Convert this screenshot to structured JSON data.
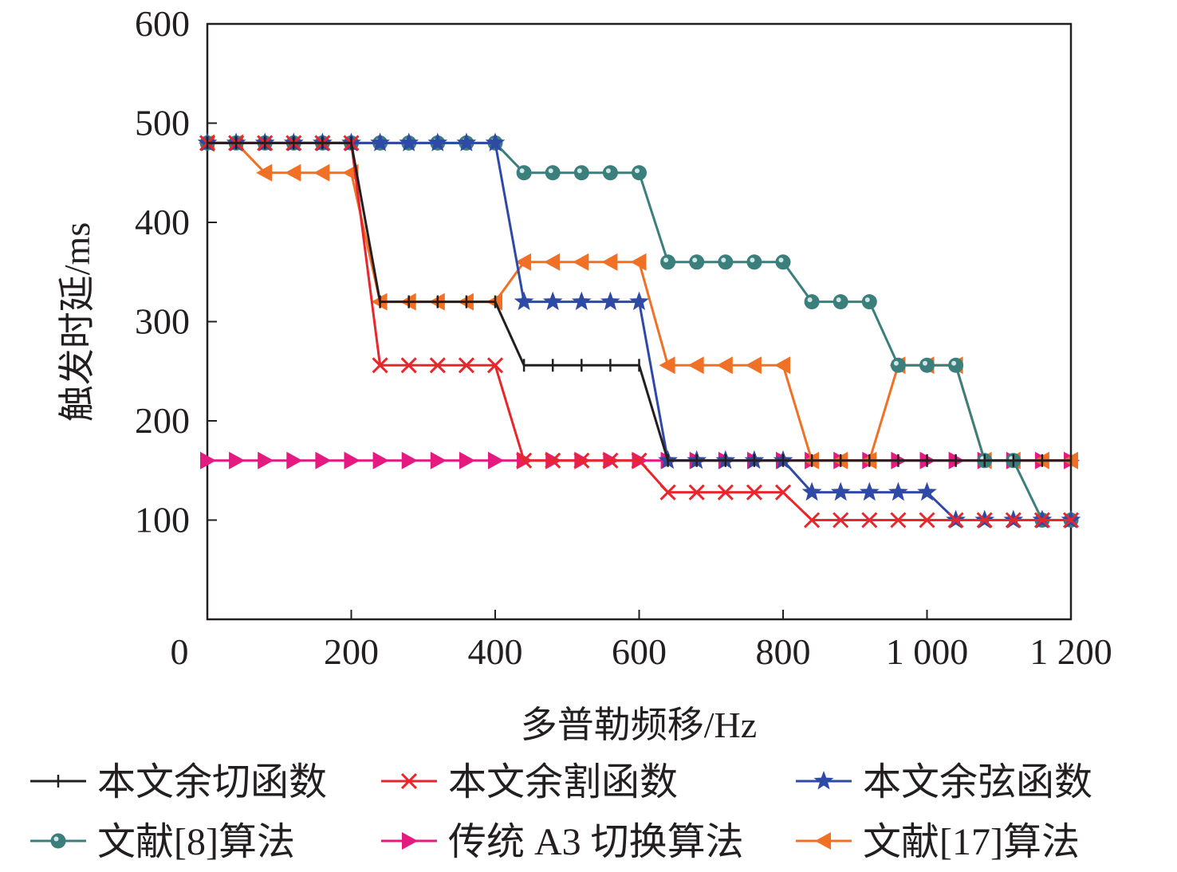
{
  "chart_data": {
    "type": "line",
    "xlabel": "多普勒频移/Hz",
    "ylabel": "触发时延/ms",
    "xlim": [
      0,
      1200
    ],
    "ylim": [
      0,
      600
    ],
    "xticks": [
      0,
      200,
      400,
      600,
      800,
      1000,
      1200
    ],
    "xtick_labels": [
      "0",
      "200",
      "400",
      "600",
      "800",
      "1 000",
      "1 200"
    ],
    "yticks": [
      100,
      200,
      300,
      400,
      500,
      600
    ],
    "ytick_labels": [
      "100",
      "200",
      "300",
      "400",
      "500",
      "600"
    ],
    "grid": false,
    "legend_position": "bottom",
    "x": [
      0,
      40,
      80,
      120,
      160,
      200,
      240,
      280,
      320,
      360,
      400,
      440,
      480,
      520,
      560,
      600,
      640,
      680,
      720,
      760,
      800,
      840,
      880,
      920,
      960,
      1000,
      1040,
      1080,
      1120,
      1160,
      1200
    ],
    "series": [
      {
        "name": "本文余切函数",
        "color": "#231f20",
        "marker": "tick",
        "values": [
          480,
          480,
          480,
          480,
          480,
          480,
          320,
          320,
          320,
          320,
          320,
          256,
          256,
          256,
          256,
          256,
          160,
          160,
          160,
          160,
          160,
          160,
          160,
          160,
          160,
          160,
          160,
          160,
          160,
          160,
          160
        ]
      },
      {
        "name": "本文余割函数",
        "color": "#e8262b",
        "marker": "x",
        "values": [
          480,
          480,
          480,
          480,
          480,
          480,
          256,
          256,
          256,
          256,
          256,
          160,
          160,
          160,
          160,
          160,
          128,
          128,
          128,
          128,
          128,
          100,
          100,
          100,
          100,
          100,
          100,
          100,
          100,
          100,
          100
        ]
      },
      {
        "name": "本文余弦函数",
        "color": "#2e4aa6",
        "marker": "star",
        "values": [
          480,
          480,
          480,
          480,
          480,
          480,
          480,
          480,
          480,
          480,
          480,
          320,
          320,
          320,
          320,
          320,
          160,
          160,
          160,
          160,
          160,
          128,
          128,
          128,
          128,
          128,
          100,
          100,
          100,
          100,
          100
        ]
      },
      {
        "name": "文献[8]算法",
        "color": "#3a7f7c",
        "marker": "circle",
        "values": [
          480,
          480,
          480,
          480,
          480,
          480,
          480,
          480,
          480,
          480,
          480,
          450,
          450,
          450,
          450,
          450,
          360,
          360,
          360,
          360,
          360,
          320,
          320,
          320,
          256,
          256,
          256,
          160,
          160,
          100,
          100
        ]
      },
      {
        "name": "传统 A3 切换算法",
        "color": "#e5197f",
        "marker": "triangle-right",
        "values": [
          160,
          160,
          160,
          160,
          160,
          160,
          160,
          160,
          160,
          160,
          160,
          160,
          160,
          160,
          160,
          160,
          160,
          160,
          160,
          160,
          160,
          160,
          160,
          160,
          160,
          160,
          160,
          160,
          160,
          160,
          160
        ]
      },
      {
        "name": "文献[17]算法",
        "color": "#f07026",
        "marker": "triangle-left",
        "values": [
          480,
          480,
          450,
          450,
          450,
          450,
          320,
          320,
          320,
          320,
          320,
          360,
          360,
          360,
          360,
          360,
          256,
          256,
          256,
          256,
          256,
          160,
          160,
          160,
          256,
          256,
          256,
          160,
          160,
          160,
          160
        ]
      }
    ]
  }
}
